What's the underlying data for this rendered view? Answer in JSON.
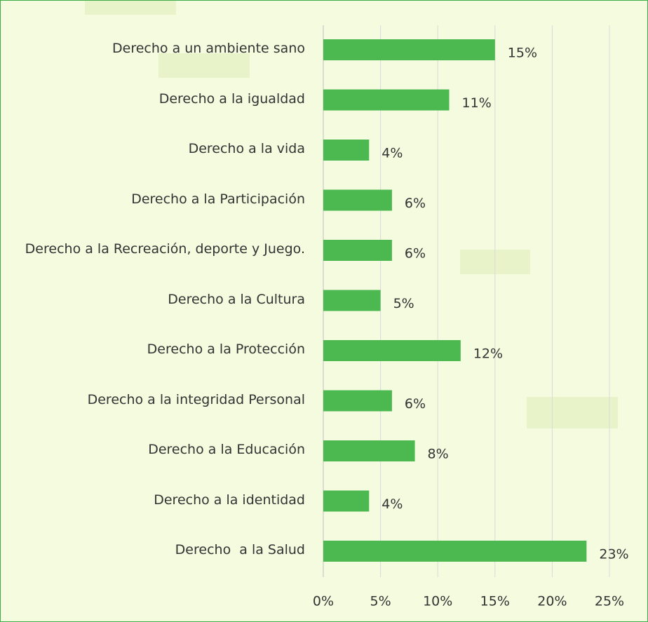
{
  "chart_data": {
    "type": "bar",
    "orientation": "horizontal",
    "categories": [
      "Derecho a un ambiente sano",
      "Derecho a la igualdad",
      "Derecho a la vida",
      "Derecho a la Participación",
      "Derecho a la Recreación, deporte y Juego.",
      "Derecho a la Cultura",
      "Derecho a la Protección",
      "Derecho a la integridad Personal",
      "Derecho a la Educación",
      "Derecho a la identidad",
      "Derecho  a la Salud"
    ],
    "values": [
      15,
      11,
      4,
      6,
      6,
      5,
      12,
      6,
      8,
      4,
      23
    ],
    "value_labels": [
      "15%",
      "11%",
      "4%",
      "6%",
      "6%",
      "5%",
      "12%",
      "6%",
      "8%",
      "4%",
      "23%"
    ],
    "color": "#4cb850",
    "xlim": [
      0,
      25
    ],
    "xticks": [
      {
        "value": 0,
        "label": "0%"
      },
      {
        "value": 5,
        "label": "5%"
      },
      {
        "value": 10,
        "label": "10%"
      },
      {
        "value": 15,
        "label": "15%"
      },
      {
        "value": 20,
        "label": "20%"
      },
      {
        "value": 25,
        "label": "25%"
      }
    ],
    "grid": true
  }
}
